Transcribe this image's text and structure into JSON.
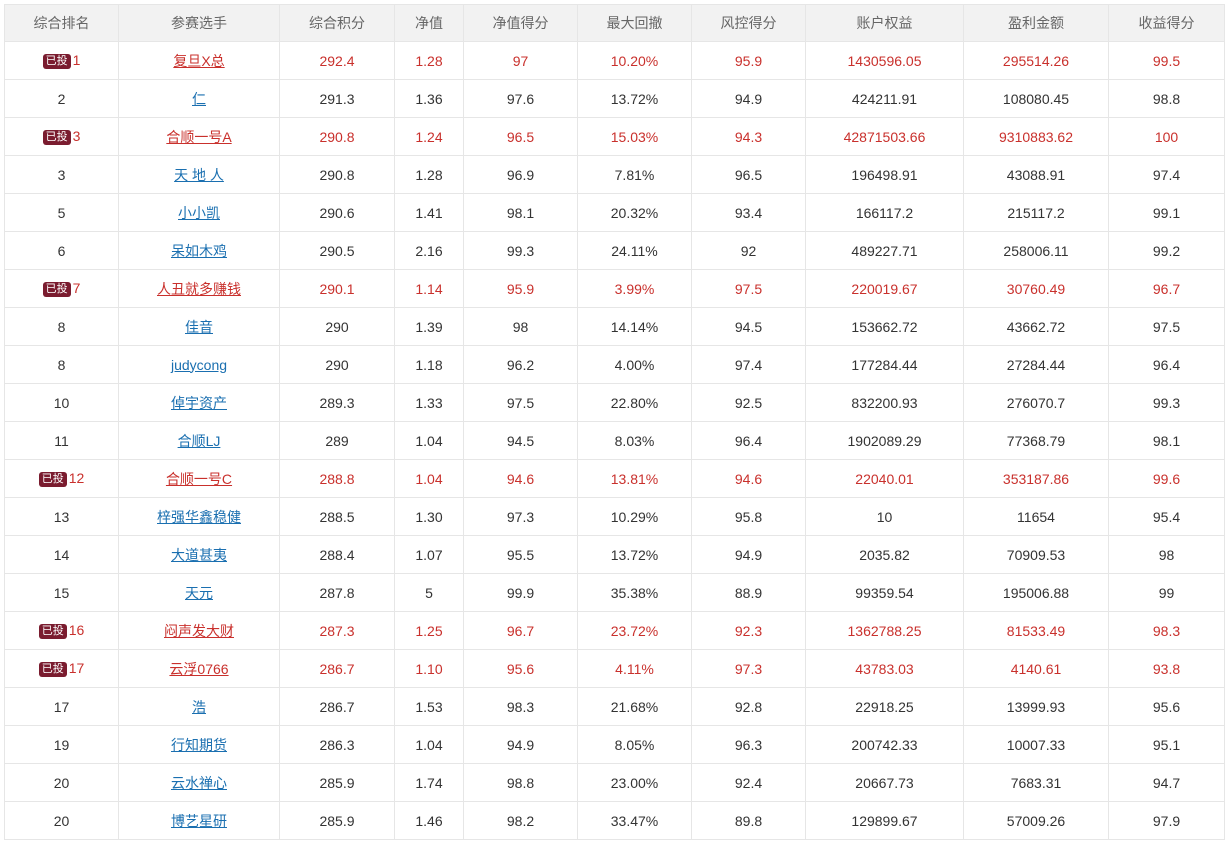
{
  "columns": [
    "综合排名",
    "参赛选手",
    "综合积分",
    "净值",
    "净值得分",
    "最大回撤",
    "风控得分",
    "账户权益",
    "盈利金额",
    "收益得分"
  ],
  "badge_label": "已投",
  "highlight_color": "#c9302c",
  "link_color": "#1a6fb0",
  "badge_color": "#7a1c2f",
  "rows": [
    {
      "rank": "1",
      "invested": true,
      "name": "复旦X总",
      "score": "292.4",
      "nav": "1.28",
      "nav_score": "97",
      "max_drawdown": "10.20%",
      "risk_score": "95.9",
      "equity": "1430596.05",
      "profit": "295514.26",
      "return_score": "99.5"
    },
    {
      "rank": "2",
      "invested": false,
      "name": "仁",
      "score": "291.3",
      "nav": "1.36",
      "nav_score": "97.6",
      "max_drawdown": "13.72%",
      "risk_score": "94.9",
      "equity": "424211.91",
      "profit": "108080.45",
      "return_score": "98.8"
    },
    {
      "rank": "3",
      "invested": true,
      "name": "合顺一号A",
      "score": "290.8",
      "nav": "1.24",
      "nav_score": "96.5",
      "max_drawdown": "15.03%",
      "risk_score": "94.3",
      "equity": "42871503.66",
      "profit": "9310883.62",
      "return_score": "100"
    },
    {
      "rank": "3",
      "invested": false,
      "name": "天 地 人",
      "score": "290.8",
      "nav": "1.28",
      "nav_score": "96.9",
      "max_drawdown": "7.81%",
      "risk_score": "96.5",
      "equity": "196498.91",
      "profit": "43088.91",
      "return_score": "97.4"
    },
    {
      "rank": "5",
      "invested": false,
      "name": "小小凯",
      "score": "290.6",
      "nav": "1.41",
      "nav_score": "98.1",
      "max_drawdown": "20.32%",
      "risk_score": "93.4",
      "equity": "166117.2",
      "profit": "215117.2",
      "return_score": "99.1"
    },
    {
      "rank": "6",
      "invested": false,
      "name": "呆如木鸡",
      "score": "290.5",
      "nav": "2.16",
      "nav_score": "99.3",
      "max_drawdown": "24.11%",
      "risk_score": "92",
      "equity": "489227.71",
      "profit": "258006.11",
      "return_score": "99.2"
    },
    {
      "rank": "7",
      "invested": true,
      "name": "人丑就多赚钱",
      "score": "290.1",
      "nav": "1.14",
      "nav_score": "95.9",
      "max_drawdown": "3.99%",
      "risk_score": "97.5",
      "equity": "220019.67",
      "profit": "30760.49",
      "return_score": "96.7"
    },
    {
      "rank": "8",
      "invested": false,
      "name": "佳音",
      "score": "290",
      "nav": "1.39",
      "nav_score": "98",
      "max_drawdown": "14.14%",
      "risk_score": "94.5",
      "equity": "153662.72",
      "profit": "43662.72",
      "return_score": "97.5"
    },
    {
      "rank": "8",
      "invested": false,
      "name": "judycong",
      "score": "290",
      "nav": "1.18",
      "nav_score": "96.2",
      "max_drawdown": "4.00%",
      "risk_score": "97.4",
      "equity": "177284.44",
      "profit": "27284.44",
      "return_score": "96.4"
    },
    {
      "rank": "10",
      "invested": false,
      "name": "倬宇资产",
      "score": "289.3",
      "nav": "1.33",
      "nav_score": "97.5",
      "max_drawdown": "22.80%",
      "risk_score": "92.5",
      "equity": "832200.93",
      "profit": "276070.7",
      "return_score": "99.3"
    },
    {
      "rank": "11",
      "invested": false,
      "name": "合顺LJ",
      "score": "289",
      "nav": "1.04",
      "nav_score": "94.5",
      "max_drawdown": "8.03%",
      "risk_score": "96.4",
      "equity": "1902089.29",
      "profit": "77368.79",
      "return_score": "98.1"
    },
    {
      "rank": "12",
      "invested": true,
      "name": "合顺一号C",
      "score": "288.8",
      "nav": "1.04",
      "nav_score": "94.6",
      "max_drawdown": "13.81%",
      "risk_score": "94.6",
      "equity": "22040.01",
      "profit": "353187.86",
      "return_score": "99.6"
    },
    {
      "rank": "13",
      "invested": false,
      "name": "梓强华鑫稳健",
      "score": "288.5",
      "nav": "1.30",
      "nav_score": "97.3",
      "max_drawdown": "10.29%",
      "risk_score": "95.8",
      "equity": "10",
      "profit": "11654",
      "return_score": "95.4"
    },
    {
      "rank": "14",
      "invested": false,
      "name": "大道甚夷",
      "score": "288.4",
      "nav": "1.07",
      "nav_score": "95.5",
      "max_drawdown": "13.72%",
      "risk_score": "94.9",
      "equity": "2035.82",
      "profit": "70909.53",
      "return_score": "98"
    },
    {
      "rank": "15",
      "invested": false,
      "name": "天元",
      "score": "287.8",
      "nav": "5",
      "nav_score": "99.9",
      "max_drawdown": "35.38%",
      "risk_score": "88.9",
      "equity": "99359.54",
      "profit": "195006.88",
      "return_score": "99"
    },
    {
      "rank": "16",
      "invested": true,
      "name": "闷声发大财",
      "score": "287.3",
      "nav": "1.25",
      "nav_score": "96.7",
      "max_drawdown": "23.72%",
      "risk_score": "92.3",
      "equity": "1362788.25",
      "profit": "81533.49",
      "return_score": "98.3"
    },
    {
      "rank": "17",
      "invested": true,
      "name": "云浮0766",
      "score": "286.7",
      "nav": "1.10",
      "nav_score": "95.6",
      "max_drawdown": "4.11%",
      "risk_score": "97.3",
      "equity": "43783.03",
      "profit": "4140.61",
      "return_score": "93.8"
    },
    {
      "rank": "17",
      "invested": false,
      "name": "浩",
      "score": "286.7",
      "nav": "1.53",
      "nav_score": "98.3",
      "max_drawdown": "21.68%",
      "risk_score": "92.8",
      "equity": "22918.25",
      "profit": "13999.93",
      "return_score": "95.6"
    },
    {
      "rank": "19",
      "invested": false,
      "name": "行知期货",
      "score": "286.3",
      "nav": "1.04",
      "nav_score": "94.9",
      "max_drawdown": "8.05%",
      "risk_score": "96.3",
      "equity": "200742.33",
      "profit": "10007.33",
      "return_score": "95.1"
    },
    {
      "rank": "20",
      "invested": false,
      "name": "云水禅心",
      "score": "285.9",
      "nav": "1.74",
      "nav_score": "98.8",
      "max_drawdown": "23.00%",
      "risk_score": "92.4",
      "equity": "20667.73",
      "profit": "7683.31",
      "return_score": "94.7"
    },
    {
      "rank": "20",
      "invested": false,
      "name": "博艺星研",
      "score": "285.9",
      "nav": "1.46",
      "nav_score": "98.2",
      "max_drawdown": "33.47%",
      "risk_score": "89.8",
      "equity": "129899.67",
      "profit": "57009.26",
      "return_score": "97.9"
    }
  ]
}
